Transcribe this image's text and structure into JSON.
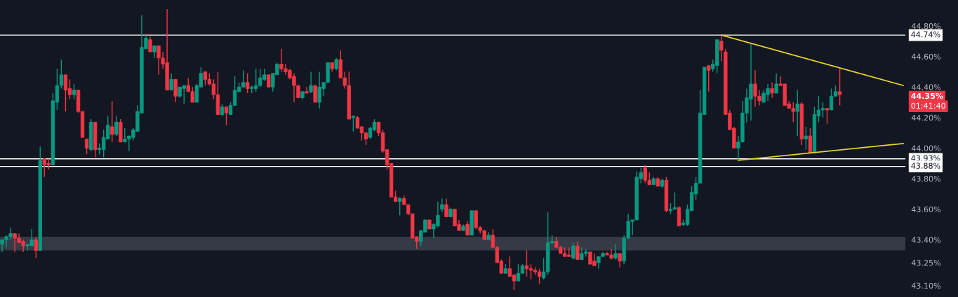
{
  "chart_data": {
    "type": "candlestick",
    "categories": [
      null,
      null,
      null,
      null,
      null,
      null,
      null,
      null,
      null,
      null,
      null,
      null,
      null,
      null,
      null,
      null,
      null,
      null,
      null,
      null,
      null,
      null,
      null,
      null,
      null,
      null,
      null,
      null,
      null,
      null,
      null,
      null,
      null,
      null,
      null,
      null,
      null,
      null,
      null,
      null,
      null,
      null,
      null,
      null,
      null,
      null,
      null,
      null,
      null,
      null,
      null,
      null,
      null,
      null,
      null,
      null,
      null,
      null,
      null,
      null,
      null,
      null,
      null,
      null,
      null,
      null,
      null,
      null,
      null,
      null,
      null,
      null,
      null,
      null,
      null,
      null,
      null,
      null,
      null,
      null,
      null,
      null,
      null,
      null,
      null,
      null,
      null,
      null,
      null,
      null,
      null,
      null,
      null,
      null,
      null,
      null,
      null,
      null,
      null,
      null,
      null,
      null,
      null,
      null,
      null,
      null,
      null,
      null,
      null,
      null,
      null,
      null,
      null,
      null,
      null,
      null,
      null,
      null,
      null,
      null,
      null,
      null,
      null,
      null,
      null,
      null,
      null,
      null,
      null,
      null,
      null,
      null,
      null,
      null,
      null,
      null,
      null,
      null,
      null,
      null,
      null,
      null,
      null,
      null,
      null,
      null,
      null,
      null,
      null,
      null,
      null,
      null,
      null,
      null,
      null,
      null,
      null,
      null,
      null,
      null,
      null,
      null,
      null,
      null,
      null,
      null,
      null,
      null,
      null,
      null,
      null,
      null,
      null,
      null,
      null,
      null,
      null,
      null,
      null,
      null,
      null,
      null,
      null,
      null,
      null,
      null,
      null,
      null,
      null,
      null,
      null,
      null,
      null,
      null,
      null,
      null,
      null,
      null,
      null,
      null,
      null,
      null,
      null,
      null,
      null,
      null,
      null,
      null,
      null,
      null,
      null,
      null,
      null,
      null
    ],
    "ohlc": [
      [
        43.37,
        43.4,
        43.32,
        43.4
      ],
      [
        43.4,
        43.43,
        43.35,
        43.42
      ],
      [
        43.42,
        43.48,
        43.4,
        43.44
      ],
      [
        43.44,
        43.44,
        43.32,
        43.41
      ],
      [
        43.41,
        43.44,
        43.38,
        43.38
      ],
      [
        43.39,
        43.4,
        43.32,
        43.36
      ],
      [
        43.36,
        43.37,
        43.33,
        43.37
      ],
      [
        43.36,
        43.47,
        43.36,
        43.4
      ],
      [
        43.4,
        43.42,
        43.28,
        43.33
      ],
      [
        43.33,
        44.01,
        43.33,
        43.92
      ],
      [
        43.93,
        43.93,
        43.81,
        43.89
      ],
      [
        43.9,
        43.93,
        43.86,
        43.89
      ],
      [
        43.89,
        44.36,
        43.89,
        44.31
      ],
      [
        44.3,
        44.52,
        44.25,
        44.41
      ],
      [
        44.41,
        44.58,
        44.39,
        44.48
      ],
      [
        44.48,
        44.48,
        44.24,
        44.38
      ],
      [
        44.39,
        44.45,
        44.32,
        44.35
      ],
      [
        44.35,
        44.42,
        44.32,
        44.38
      ],
      [
        44.38,
        44.38,
        44.23,
        44.24
      ],
      [
        44.24,
        44.24,
        44.07,
        44.07
      ],
      [
        44.06,
        44.06,
        43.96,
        44.0
      ],
      [
        43.99,
        44.19,
        43.98,
        44.17
      ],
      [
        44.17,
        44.17,
        43.94,
        43.99
      ],
      [
        43.99,
        44.03,
        43.96,
        44.0
      ],
      [
        43.99,
        44.12,
        43.94,
        44.07
      ],
      [
        44.06,
        44.21,
        44.06,
        44.15
      ],
      [
        44.14,
        44.31,
        44.04,
        44.09
      ],
      [
        44.09,
        44.21,
        44.08,
        44.17
      ],
      [
        44.17,
        44.19,
        44.04,
        44.04
      ],
      [
        44.04,
        44.13,
        44.04,
        44.06
      ],
      [
        44.06,
        44.08,
        43.98,
        44.08
      ],
      [
        44.07,
        44.13,
        44.05,
        44.12
      ],
      [
        44.11,
        44.28,
        44.11,
        44.24
      ],
      [
        44.23,
        44.87,
        44.23,
        44.66
      ],
      [
        44.65,
        44.74,
        44.65,
        44.72
      ],
      [
        44.71,
        44.73,
        44.63,
        44.63
      ],
      [
        44.63,
        44.67,
        44.59,
        44.67
      ],
      [
        44.67,
        44.67,
        44.48,
        44.59
      ],
      [
        44.59,
        44.63,
        44.52,
        44.55
      ],
      [
        44.56,
        44.91,
        44.38,
        44.38
      ],
      [
        44.38,
        44.49,
        44.38,
        44.45
      ],
      [
        44.45,
        44.45,
        44.3,
        44.34
      ],
      [
        44.34,
        44.4,
        44.33,
        44.4
      ],
      [
        44.39,
        44.41,
        44.29,
        44.41
      ],
      [
        44.41,
        44.46,
        44.37,
        44.37
      ],
      [
        44.37,
        44.4,
        44.3,
        44.3
      ],
      [
        44.3,
        44.42,
        44.3,
        44.41
      ],
      [
        44.4,
        44.53,
        44.4,
        44.49
      ],
      [
        44.5,
        44.5,
        44.41,
        44.45
      ],
      [
        44.45,
        44.49,
        44.41,
        44.42
      ],
      [
        44.42,
        44.45,
        44.32,
        44.35
      ],
      [
        44.35,
        44.5,
        44.22,
        44.22
      ],
      [
        44.22,
        44.29,
        44.21,
        44.27
      ],
      [
        44.27,
        44.27,
        44.15,
        44.23
      ],
      [
        44.22,
        44.3,
        44.22,
        44.28
      ],
      [
        44.28,
        44.47,
        44.28,
        44.38
      ],
      [
        44.37,
        44.43,
        44.37,
        44.4
      ],
      [
        44.4,
        44.51,
        44.4,
        44.43
      ],
      [
        44.43,
        44.49,
        44.36,
        44.39
      ],
      [
        44.39,
        44.41,
        44.36,
        44.4
      ],
      [
        44.39,
        44.52,
        44.37,
        44.41
      ],
      [
        44.41,
        44.52,
        44.4,
        44.46
      ],
      [
        44.45,
        44.52,
        44.44,
        44.48
      ],
      [
        44.48,
        44.48,
        44.4,
        44.4
      ],
      [
        44.4,
        44.49,
        44.37,
        44.49
      ],
      [
        44.48,
        44.56,
        44.48,
        44.55
      ],
      [
        44.55,
        44.65,
        44.5,
        44.52
      ],
      [
        44.52,
        44.55,
        44.48,
        44.5
      ],
      [
        44.51,
        44.52,
        44.45,
        44.46
      ],
      [
        44.47,
        44.49,
        44.3,
        44.41
      ],
      [
        44.41,
        44.41,
        44.33,
        44.33
      ],
      [
        44.33,
        44.37,
        44.32,
        44.37
      ],
      [
        44.37,
        44.4,
        44.36,
        44.36
      ],
      [
        44.37,
        44.5,
        44.36,
        44.41
      ],
      [
        44.41,
        44.41,
        44.3,
        44.3
      ],
      [
        44.3,
        44.5,
        44.26,
        44.4
      ],
      [
        44.39,
        44.43,
        44.34,
        44.43
      ],
      [
        44.43,
        44.56,
        44.43,
        44.56
      ],
      [
        44.56,
        44.56,
        44.5,
        44.52
      ],
      [
        44.52,
        44.59,
        44.51,
        44.58
      ],
      [
        44.58,
        44.64,
        44.46,
        44.46
      ],
      [
        44.46,
        44.5,
        44.39,
        44.41
      ],
      [
        44.41,
        44.5,
        44.19,
        44.19
      ],
      [
        44.2,
        44.21,
        44.11,
        44.21
      ],
      [
        44.2,
        44.21,
        44.13,
        44.13
      ],
      [
        44.14,
        44.14,
        44.05,
        44.1
      ],
      [
        44.1,
        44.1,
        44.02,
        44.06
      ],
      [
        44.07,
        44.14,
        44.06,
        44.13
      ],
      [
        44.12,
        44.19,
        44.11,
        44.17
      ],
      [
        44.17,
        44.17,
        44.08,
        44.1
      ],
      [
        44.1,
        44.12,
        43.97,
        43.98
      ],
      [
        43.99,
        43.99,
        43.86,
        43.89
      ],
      [
        43.9,
        43.9,
        43.68,
        43.68
      ],
      [
        43.68,
        43.72,
        43.65,
        43.65
      ],
      [
        43.65,
        43.68,
        43.56,
        43.67
      ],
      [
        43.67,
        43.69,
        43.63,
        43.63
      ],
      [
        43.63,
        43.63,
        43.56,
        43.57
      ],
      [
        43.57,
        43.57,
        43.41,
        43.41
      ],
      [
        43.42,
        43.42,
        43.34,
        43.39
      ],
      [
        43.39,
        43.46,
        43.36,
        43.46
      ],
      [
        43.45,
        43.53,
        43.45,
        43.53
      ],
      [
        43.53,
        43.53,
        43.47,
        43.47
      ],
      [
        43.47,
        43.51,
        43.41,
        43.5
      ],
      [
        43.49,
        43.65,
        43.48,
        43.56
      ],
      [
        43.6,
        43.67,
        43.58,
        43.63
      ],
      [
        43.63,
        43.67,
        43.55,
        43.55
      ],
      [
        43.55,
        43.61,
        43.55,
        43.6
      ],
      [
        43.6,
        43.6,
        43.49,
        43.49
      ],
      [
        43.5,
        43.53,
        43.46,
        43.46
      ],
      [
        43.46,
        43.5,
        43.46,
        43.49
      ],
      [
        43.5,
        43.52,
        43.43,
        43.43
      ],
      [
        43.43,
        43.59,
        43.43,
        43.59
      ],
      [
        43.59,
        43.59,
        43.47,
        43.48
      ],
      [
        43.48,
        43.49,
        43.44,
        43.46
      ],
      [
        43.46,
        43.46,
        43.4,
        43.4
      ],
      [
        43.4,
        43.45,
        43.4,
        43.43
      ],
      [
        43.43,
        43.47,
        43.35,
        43.35
      ],
      [
        43.35,
        43.36,
        43.25,
        43.25
      ],
      [
        43.26,
        43.27,
        43.18,
        43.18
      ],
      [
        43.18,
        43.24,
        43.18,
        43.21
      ],
      [
        43.21,
        43.29,
        43.16,
        43.16
      ],
      [
        43.17,
        43.17,
        43.07,
        43.13
      ],
      [
        43.13,
        43.24,
        43.13,
        43.18
      ],
      [
        43.18,
        43.24,
        43.18,
        43.23
      ],
      [
        43.23,
        43.33,
        43.16,
        43.21
      ],
      [
        43.21,
        43.24,
        43.14,
        43.2
      ],
      [
        43.2,
        43.22,
        43.17,
        43.19
      ],
      [
        43.19,
        43.21,
        43.11,
        43.16
      ],
      [
        43.15,
        43.28,
        43.14,
        43.19
      ],
      [
        43.19,
        43.58,
        43.17,
        43.38
      ],
      [
        43.38,
        43.43,
        43.37,
        43.39
      ],
      [
        43.39,
        43.42,
        43.35,
        43.35
      ],
      [
        43.35,
        43.36,
        43.31,
        43.31
      ],
      [
        43.31,
        43.35,
        43.29,
        43.29
      ],
      [
        43.3,
        43.35,
        43.29,
        43.29
      ],
      [
        43.28,
        43.38,
        43.27,
        43.36
      ],
      [
        43.36,
        43.39,
        43.27,
        43.27
      ],
      [
        43.27,
        43.35,
        43.27,
        43.31
      ],
      [
        43.31,
        43.34,
        43.29,
        43.32
      ],
      [
        43.32,
        43.32,
        43.24,
        43.24
      ],
      [
        43.26,
        43.31,
        43.23,
        43.23
      ],
      [
        43.25,
        43.29,
        43.21,
        43.29
      ],
      [
        43.29,
        43.32,
        43.29,
        43.31
      ],
      [
        43.31,
        43.32,
        43.3,
        43.3
      ],
      [
        43.3,
        43.34,
        43.27,
        43.28
      ],
      [
        43.28,
        43.37,
        43.27,
        43.31
      ],
      [
        43.31,
        43.31,
        43.22,
        43.26
      ],
      [
        43.26,
        43.43,
        43.24,
        43.41
      ],
      [
        43.41,
        43.57,
        43.41,
        43.52
      ],
      [
        43.52,
        43.53,
        43.43,
        43.53
      ],
      [
        43.53,
        43.85,
        43.53,
        43.81
      ],
      [
        43.8,
        43.87,
        43.77,
        43.84
      ],
      [
        43.87,
        43.89,
        43.77,
        43.79
      ],
      [
        43.79,
        43.84,
        43.76,
        43.76
      ],
      [
        43.76,
        43.81,
        43.76,
        43.8
      ],
      [
        43.8,
        43.81,
        43.75,
        43.75
      ],
      [
        43.75,
        43.8,
        43.74,
        43.79
      ],
      [
        43.79,
        43.81,
        43.58,
        43.59
      ],
      [
        43.59,
        43.64,
        43.57,
        43.6
      ],
      [
        43.6,
        43.71,
        43.6,
        43.61
      ],
      [
        43.61,
        43.62,
        43.49,
        43.49
      ],
      [
        43.5,
        43.53,
        43.49,
        43.51
      ],
      [
        43.5,
        43.63,
        43.49,
        43.6
      ],
      [
        43.59,
        43.75,
        43.59,
        43.71
      ],
      [
        43.7,
        43.81,
        43.66,
        43.77
      ],
      [
        43.77,
        44.38,
        43.77,
        44.23
      ],
      [
        44.22,
        44.53,
        44.22,
        44.53
      ],
      [
        44.54,
        44.54,
        44.37,
        44.51
      ],
      [
        44.52,
        44.58,
        44.5,
        44.55
      ],
      [
        44.54,
        44.71,
        44.49,
        44.71
      ],
      [
        44.7,
        44.74,
        44.57,
        44.64
      ],
      [
        44.63,
        44.65,
        44.22,
        44.22
      ],
      [
        44.23,
        44.25,
        44.12,
        44.12
      ],
      [
        44.13,
        44.14,
        44.0,
        44.0
      ],
      [
        44.0,
        44.08,
        43.92,
        44.04
      ],
      [
        44.04,
        44.31,
        44.04,
        44.23
      ],
      [
        44.23,
        44.39,
        44.17,
        44.33
      ],
      [
        44.32,
        44.69,
        44.18,
        44.42
      ],
      [
        44.42,
        44.51,
        44.27,
        44.34
      ],
      [
        44.34,
        44.38,
        44.28,
        44.31
      ],
      [
        44.3,
        44.38,
        44.3,
        44.36
      ],
      [
        44.35,
        44.42,
        44.31,
        44.39
      ],
      [
        44.39,
        44.43,
        44.33,
        44.36
      ],
      [
        44.36,
        44.49,
        44.36,
        44.42
      ],
      [
        44.42,
        44.47,
        44.41,
        44.41
      ],
      [
        44.42,
        44.42,
        44.28,
        44.28
      ],
      [
        44.29,
        44.31,
        44.26,
        44.26
      ],
      [
        44.26,
        44.3,
        44.17,
        44.24
      ],
      [
        44.24,
        44.38,
        44.08,
        44.29
      ],
      [
        44.29,
        44.3,
        44.02,
        44.06
      ],
      [
        44.06,
        44.14,
        43.99,
        44.08
      ],
      [
        44.08,
        44.13,
        43.97,
        43.97
      ],
      [
        43.97,
        44.27,
        43.97,
        44.22
      ],
      [
        44.21,
        44.34,
        44.17,
        44.25
      ],
      [
        44.25,
        44.3,
        44.2,
        44.26
      ],
      [
        44.26,
        44.26,
        44.16,
        44.25
      ],
      [
        44.25,
        44.39,
        44.25,
        44.34
      ],
      [
        44.34,
        44.41,
        44.34,
        44.37
      ],
      [
        44.37,
        44.52,
        44.28,
        44.35
      ],
      null,
      null,
      null,
      null,
      null,
      null,
      null,
      null,
      null,
      null,
      null,
      null,
      null,
      null,
      null
    ],
    "colors": [
      "#089981",
      "#089981",
      "#089981",
      "#f23645",
      "#f23645",
      "#f23645",
      "#089981",
      "#089981",
      "#f23645",
      "#089981",
      "#f23645",
      "#f23645",
      "#089981",
      "#089981",
      "#089981",
      "#f23645",
      "#f23645",
      "#089981",
      "#f23645",
      "#f23645",
      "#f23645",
      "#089981",
      "#f23645",
      "#089981",
      "#089981",
      "#089981",
      "#f23645",
      "#089981",
      "#f23645",
      "#089981",
      "#089981",
      "#089981",
      "#089981",
      "#089981",
      "#089981",
      "#f23645",
      "#089981",
      "#f23645",
      "#f23645",
      "#f23645",
      "#089981",
      "#f23645",
      "#089981",
      "#089981",
      "#f23645",
      "#f23645",
      "#089981",
      "#089981",
      "#f23645",
      "#f23645",
      "#f23645",
      "#f23645",
      "#089981",
      "#f23645",
      "#089981",
      "#089981",
      "#089981",
      "#089981",
      "#f23645",
      "#089981",
      "#089981",
      "#089981",
      "#089981",
      "#f23645",
      "#089981",
      "#089981",
      "#f23645",
      "#f23645",
      "#f23645",
      "#f23645",
      "#f23645",
      "#089981",
      "#f23645",
      "#089981",
      "#f23645",
      "#089981",
      "#089981",
      "#089981",
      "#f23645",
      "#089981",
      "#f23645",
      "#f23645",
      "#f23645",
      "#089981",
      "#f23645",
      "#f23645",
      "#f23645",
      "#089981",
      "#089981",
      "#f23645",
      "#f23645",
      "#f23645",
      "#f23645",
      "#f23645",
      "#089981",
      "#f23645",
      "#f23645",
      "#f23645",
      "#f23645",
      "#089981",
      "#089981",
      "#f23645",
      "#089981",
      "#089981",
      "#089981",
      "#f23645",
      "#089981",
      "#f23645",
      "#f23645",
      "#089981",
      "#f23645",
      "#089981",
      "#f23645",
      "#f23645",
      "#f23645",
      "#089981",
      "#f23645",
      "#f23645",
      "#f23645",
      "#089981",
      "#f23645",
      "#f23645",
      "#089981",
      "#089981",
      "#f23645",
      "#f23645",
      "#f23645",
      "#f23645",
      "#089981",
      "#089981",
      "#089981",
      "#f23645",
      "#f23645",
      "#f23645",
      "#f23645",
      "#089981",
      "#f23645",
      "#089981",
      "#089981",
      "#f23645",
      "#f23645",
      "#089981",
      "#089981",
      "#f23645",
      "#f23645",
      "#089981",
      "#f23645",
      "#089981",
      "#089981",
      "#089981",
      "#089981",
      "#089981",
      "#f23645",
      "#f23645",
      "#089981",
      "#f23645",
      "#089981",
      "#f23645",
      "#089981",
      "#089981",
      "#f23645",
      "#089981",
      "#089981",
      "#089981",
      "#089981",
      "#089981",
      "#089981",
      "#f23645",
      "#089981",
      "#089981",
      "#f23645",
      "#f23645",
      "#f23645",
      "#f23645",
      "#089981",
      "#089981",
      "#089981",
      "#089981",
      "#f23645",
      "#f23645",
      "#089981",
      "#089981",
      "#f23645",
      "#089981",
      "#f23645",
      "#f23645",
      "#f23645",
      "#f23645",
      "#089981",
      "#f23645",
      "#089981",
      "#f23645",
      "#089981",
      "#089981",
      "#089981",
      "#f23645",
      "#089981",
      "#089981",
      "#f23645",
      null,
      null,
      null,
      null,
      null,
      null,
      null,
      null,
      null,
      null,
      null,
      null,
      null,
      null,
      null
    ],
    "series": [
      {
        "type": "line",
        "color": "#e6d52e",
        "values": [
          null,
          null,
          null,
          null,
          null,
          null,
          null,
          null,
          null,
          null,
          null,
          null,
          null,
          null,
          null,
          null,
          null,
          null,
          null,
          null,
          null,
          null,
          null,
          null,
          null,
          null,
          null,
          null,
          null,
          null,
          null,
          null,
          null,
          null,
          null,
          null,
          null,
          null,
          null,
          null,
          null,
          null,
          null,
          null,
          null,
          null,
          null,
          null,
          null,
          null,
          null,
          null,
          null,
          null,
          null,
          null,
          null,
          null,
          null,
          null,
          null,
          null,
          null,
          null,
          null,
          null,
          null,
          null,
          null,
          null,
          null,
          null,
          null,
          null,
          null,
          null,
          null,
          null,
          null,
          null,
          null,
          null,
          null,
          null,
          null,
          null,
          null,
          null,
          null,
          null,
          null,
          null,
          null,
          null,
          null,
          null,
          null,
          null,
          null,
          null,
          null,
          null,
          null,
          null,
          null,
          null,
          null,
          null,
          null,
          null,
          null,
          null,
          null,
          null,
          null,
          null,
          null,
          null,
          null,
          null,
          null,
          null,
          null,
          null,
          null,
          null,
          null,
          null,
          null,
          null,
          null,
          null,
          null,
          null,
          null,
          null,
          null,
          null,
          null,
          null,
          null,
          null,
          null,
          null,
          null,
          null,
          null,
          null,
          null,
          null,
          null,
          null,
          null,
          null,
          null,
          null,
          null,
          null,
          null,
          null,
          null,
          null,
          null,
          null,
          null,
          null,
          null,
          null,
          null,
          null,
          44.74,
          null,
          null,
          null,
          null,
          null,
          null,
          null,
          null,
          null,
          null,
          null,
          null,
          null,
          null,
          null,
          null,
          null,
          null,
          null,
          null,
          null,
          null,
          null,
          null,
          null,
          null,
          null,
          null,
          null,
          null,
          null,
          null,
          null,
          null,
          null,
          null,
          null,
          null,
          null,
          null,
          null,
          null,
          44.41
        ]
      },
      {
        "type": "line",
        "color": "#e6d52e",
        "values": [
          null,
          null,
          null,
          null,
          null,
          null,
          null,
          null,
          null,
          null,
          null,
          null,
          null,
          null,
          null,
          null,
          null,
          null,
          null,
          null,
          null,
          null,
          null,
          null,
          null,
          null,
          null,
          null,
          null,
          null,
          null,
          null,
          null,
          null,
          null,
          null,
          null,
          null,
          null,
          null,
          null,
          null,
          null,
          null,
          null,
          null,
          null,
          null,
          null,
          null,
          null,
          null,
          null,
          null,
          null,
          null,
          null,
          null,
          null,
          null,
          null,
          null,
          null,
          null,
          null,
          null,
          null,
          null,
          null,
          null,
          null,
          null,
          null,
          null,
          null,
          null,
          null,
          null,
          null,
          null,
          null,
          null,
          null,
          null,
          null,
          null,
          null,
          null,
          null,
          null,
          null,
          null,
          null,
          null,
          null,
          null,
          null,
          null,
          null,
          null,
          null,
          null,
          null,
          null,
          null,
          null,
          null,
          null,
          null,
          null,
          null,
          null,
          null,
          null,
          null,
          null,
          null,
          null,
          null,
          null,
          null,
          null,
          null,
          null,
          null,
          null,
          null,
          null,
          null,
          null,
          null,
          null,
          null,
          null,
          null,
          null,
          null,
          null,
          null,
          null,
          null,
          null,
          null,
          null,
          null,
          null,
          null,
          null,
          null,
          null,
          null,
          null,
          null,
          null,
          null,
          null,
          null,
          null,
          null,
          null,
          null,
          null,
          null,
          null,
          null,
          null,
          null,
          null,
          null,
          null,
          null,
          null,
          null,
          null,
          43.92,
          null,
          null,
          null,
          null,
          null,
          null,
          null,
          null,
          null,
          null,
          null,
          null,
          null,
          null,
          null,
          null,
          null,
          null,
          null,
          null,
          null,
          null,
          null,
          null,
          null,
          null,
          null,
          null,
          null,
          null,
          null,
          null,
          null,
          null,
          null,
          null,
          null,
          null,
          44.03
        ]
      }
    ],
    "ylim": [
      43.025,
      44.97
    ],
    "yticks": [
      {
        "value": 44.8,
        "label": "44.80%"
      },
      {
        "value": 44.6,
        "label": "44.60%"
      },
      {
        "value": 44.4,
        "label": "44.40%"
      },
      {
        "value": 44.2,
        "label": "44.20%"
      },
      {
        "value": 44.0,
        "label": "44.00%"
      },
      {
        "value": 43.8,
        "label": "43.80%"
      },
      {
        "value": 43.6,
        "label": "43.60%"
      },
      {
        "value": 43.4,
        "label": "43.40%"
      },
      {
        "value": 43.25,
        "label": "43.25%"
      },
      {
        "value": 43.1,
        "label": "43.10%"
      }
    ],
    "tick_labels": "y",
    "grid": false,
    "ref_lines": [
      {
        "axis": "y",
        "value": 44.74,
        "label": "44.74%",
        "color": "#ffffff"
      },
      {
        "axis": "y",
        "value": 43.93,
        "label": "43.93%",
        "color": "#ffffff"
      },
      {
        "axis": "y",
        "value": 43.88,
        "label": "43.88%",
        "color": "#ffffff"
      }
    ],
    "bands": [
      {
        "axis": "y",
        "from": 43.33,
        "to": 43.42,
        "color": "#363a45"
      }
    ],
    "annotations": [
      "44.35%",
      "01:41:40"
    ]
  }
}
